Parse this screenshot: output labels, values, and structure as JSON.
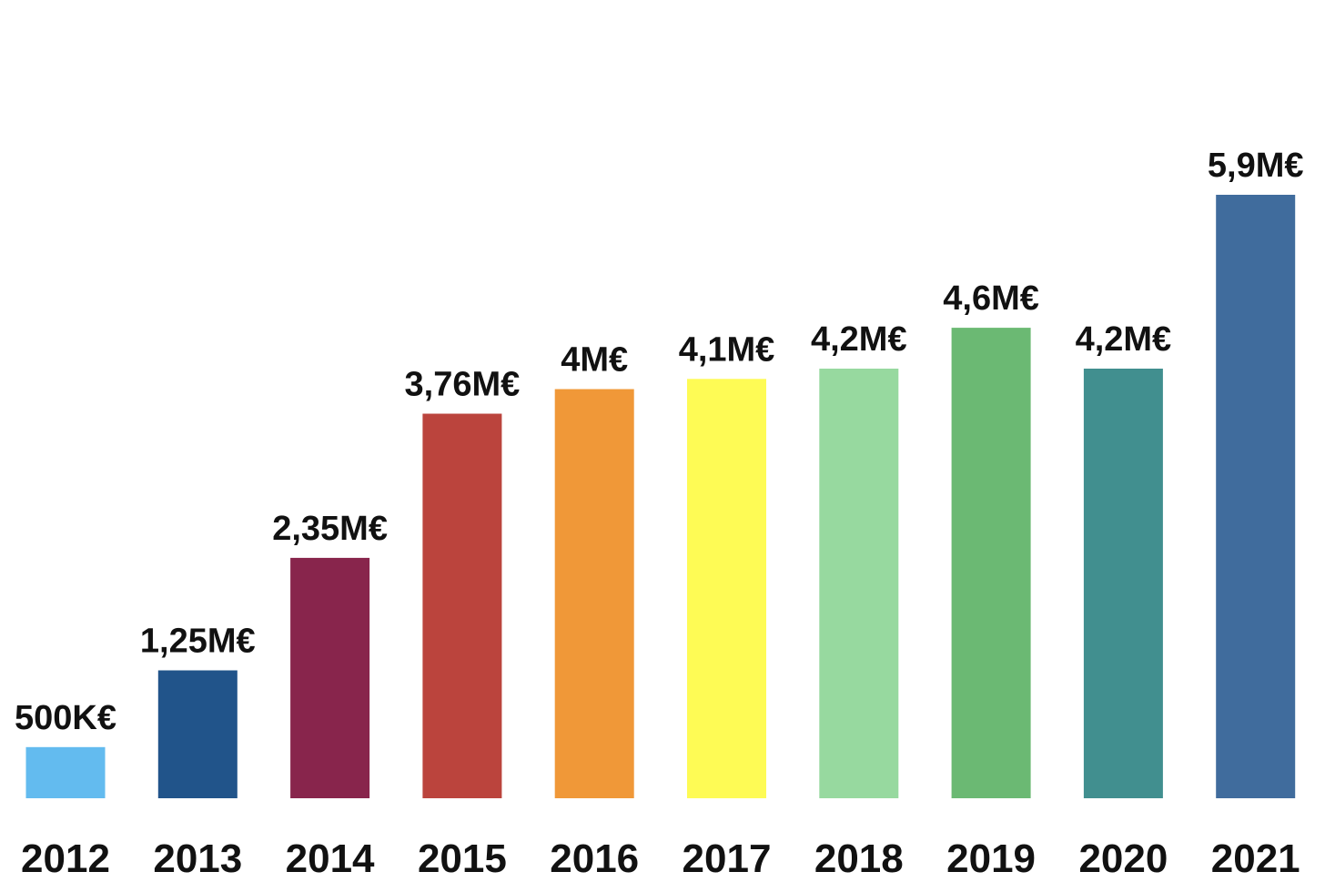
{
  "chart_data": {
    "type": "bar",
    "title": "",
    "xlabel": "",
    "ylabel": "",
    "ylim": [
      0,
      5.9
    ],
    "grid": false,
    "categories": [
      "2012",
      "2013",
      "2014",
      "2015",
      "2016",
      "2017",
      "2018",
      "2019",
      "2020",
      "2021"
    ],
    "values": [
      0.5,
      1.25,
      2.35,
      3.76,
      4.0,
      4.1,
      4.2,
      4.6,
      4.2,
      5.9
    ],
    "data_labels": [
      "500K€",
      "1,25M€",
      "2,35M€",
      "3,76M€",
      "4M€",
      "4,1M€",
      "4,2M€",
      "4,6M€",
      "4,2M€",
      "5,9M€"
    ],
    "colors": [
      "#63bbef",
      "#21548a",
      "#88254c",
      "#bb443d",
      "#f09838",
      "#fefb55",
      "#97d99f",
      "#6bb973",
      "#418f8f",
      "#406c9d"
    ]
  }
}
